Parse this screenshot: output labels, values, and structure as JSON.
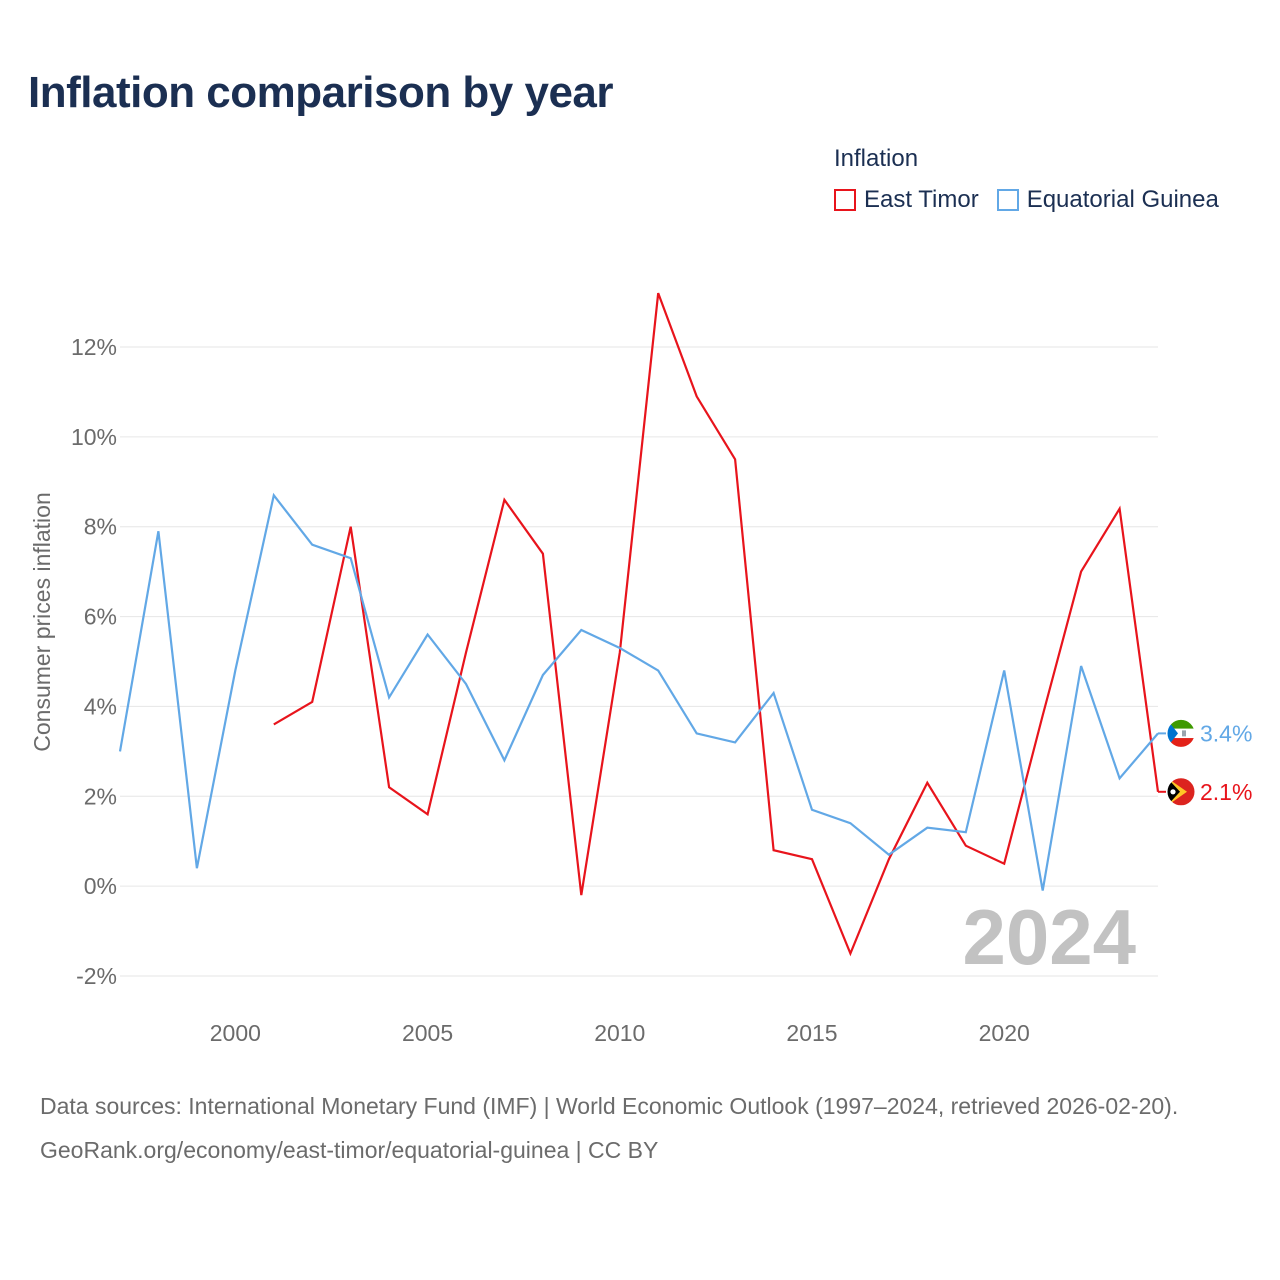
{
  "title": "Inflation comparison by year",
  "legend": {
    "title": "Inflation",
    "items": [
      {
        "name": "East Timor",
        "color": "#e8141c"
      },
      {
        "name": "Equatorial Guinea",
        "color": "#62a8e6"
      }
    ]
  },
  "watermark_year": "2024",
  "footer": {
    "sources": "Data sources: International Monetary Fund (IMF) | World Economic Outlook (1997–2024, retrieved 2026-02-20).",
    "credit": "GeoRank.org/economy/east-timor/equatorial-guinea | CC BY"
  },
  "chart_data": {
    "type": "line",
    "title": "Inflation comparison by year",
    "xlabel": "",
    "ylabel": "Consumer prices inflation",
    "xlim": [
      1997,
      2024
    ],
    "ylim": [
      -2.5,
      13.5
    ],
    "xticks": [
      2000,
      2005,
      2010,
      2015,
      2020
    ],
    "yticks": [
      -2,
      0,
      2,
      4,
      6,
      8,
      10,
      12
    ],
    "ytick_labels": [
      "-2%",
      "0%",
      "2%",
      "4%",
      "6%",
      "8%",
      "10%",
      "12%"
    ],
    "grid": true,
    "legend_position": "top-right",
    "series": [
      {
        "name": "East Timor",
        "color": "#e8141c",
        "end_label": "2.1%",
        "x": [
          2001,
          2002,
          2003,
          2004,
          2005,
          2006,
          2007,
          2008,
          2009,
          2010,
          2011,
          2012,
          2013,
          2014,
          2015,
          2016,
          2017,
          2018,
          2019,
          2020,
          2021,
          2022,
          2023,
          2024
        ],
        "values": [
          3.6,
          4.1,
          8.0,
          2.2,
          1.6,
          5.2,
          8.6,
          7.4,
          -0.2,
          5.2,
          13.2,
          10.9,
          9.5,
          0.8,
          0.6,
          -1.5,
          0.6,
          2.3,
          0.9,
          0.5,
          3.8,
          7.0,
          8.4,
          2.1
        ]
      },
      {
        "name": "Equatorial Guinea",
        "color": "#62a8e6",
        "end_label": "3.4%",
        "x": [
          1997,
          1998,
          1999,
          2000,
          2001,
          2002,
          2003,
          2004,
          2005,
          2006,
          2007,
          2008,
          2009,
          2010,
          2011,
          2012,
          2013,
          2014,
          2015,
          2016,
          2017,
          2018,
          2019,
          2020,
          2021,
          2022,
          2023,
          2024
        ],
        "values": [
          3.0,
          7.9,
          0.4,
          4.8,
          8.7,
          7.6,
          7.3,
          4.2,
          5.6,
          4.5,
          2.8,
          4.7,
          5.7,
          5.3,
          4.8,
          3.4,
          3.2,
          4.3,
          1.7,
          1.4,
          0.7,
          1.3,
          1.2,
          4.8,
          -0.1,
          4.9,
          2.4,
          3.4
        ]
      }
    ]
  }
}
